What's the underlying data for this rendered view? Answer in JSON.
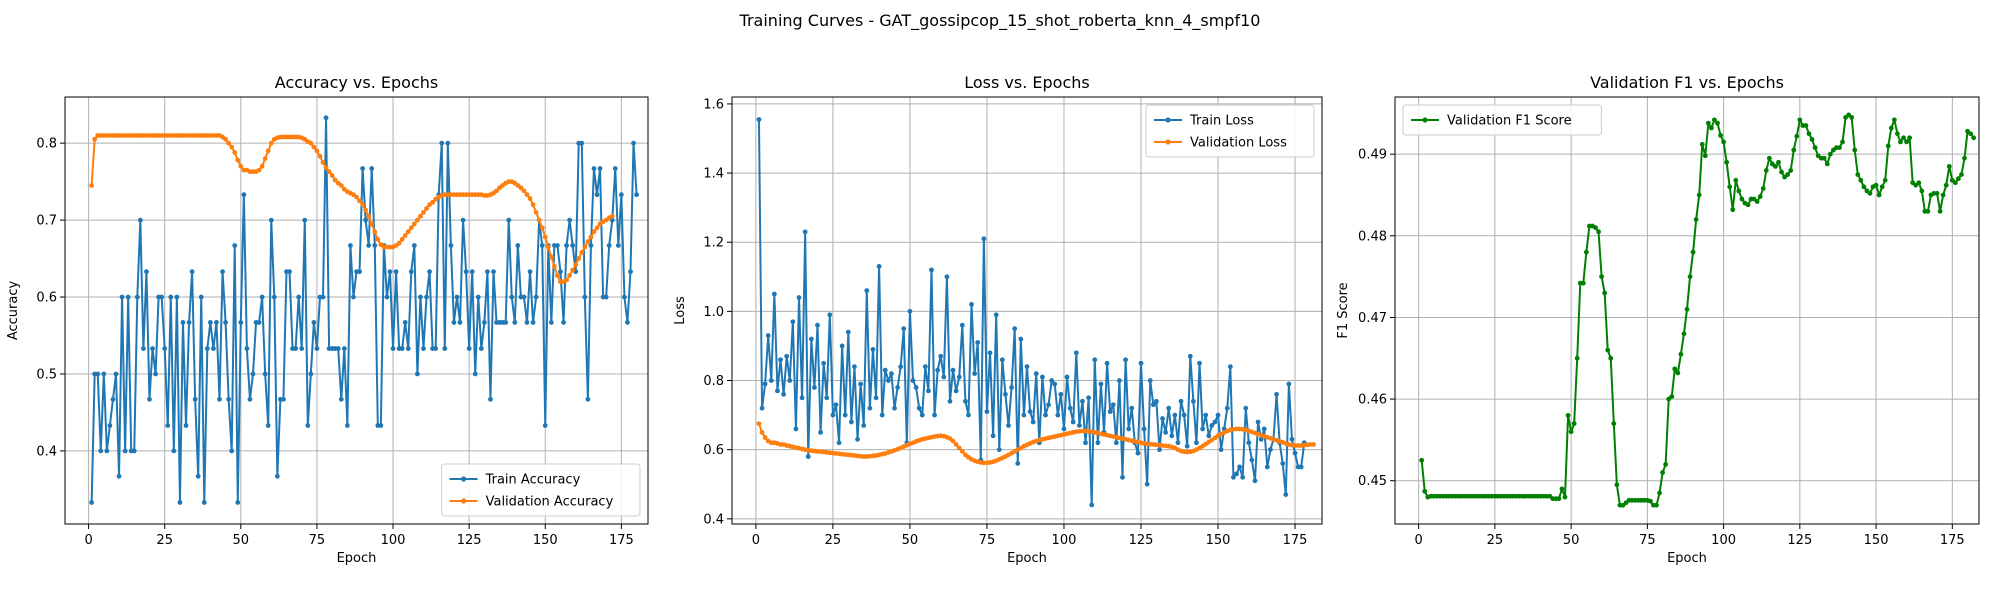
{
  "figure": {
    "suptitle": "Training Curves - GAT_gossipcop_15_shot_roberta_knn_4_smpf10"
  },
  "chart_data": [
    {
      "type": "line",
      "title": "Accuracy vs. Epochs",
      "xlabel": "Epoch",
      "ylabel": "Accuracy",
      "xlim": [
        -7.75,
        183.75
      ],
      "ylim": [
        0.305,
        0.86
      ],
      "xticks": [
        0,
        25,
        50,
        75,
        100,
        125,
        150,
        175
      ],
      "yticks": [
        0.4,
        0.5,
        0.6,
        0.7,
        0.8
      ],
      "ytick_decimals": 1,
      "grid": true,
      "legend": "lower-right",
      "series": [
        {
          "name": "Train Accuracy",
          "color": "#1f77b4",
          "values": [
            0.333,
            0.5,
            0.5,
            0.4,
            0.5,
            0.4,
            0.433,
            0.467,
            0.5,
            0.367,
            0.6,
            0.4,
            0.6,
            0.4,
            0.4,
            0.6,
            0.7,
            0.533,
            0.633,
            0.467,
            0.533,
            0.5,
            0.6,
            0.6,
            0.533,
            0.433,
            0.6,
            0.4,
            0.6,
            0.333,
            0.567,
            0.433,
            0.567,
            0.633,
            0.467,
            0.367,
            0.6,
            0.333,
            0.533,
            0.567,
            0.533,
            0.567,
            0.467,
            0.633,
            0.567,
            0.467,
            0.4,
            0.667,
            0.333,
            0.567,
            0.733,
            0.533,
            0.467,
            0.5,
            0.567,
            0.567,
            0.6,
            0.5,
            0.433,
            0.7,
            0.6,
            0.367,
            0.467,
            0.467,
            0.633,
            0.633,
            0.533,
            0.533,
            0.6,
            0.533,
            0.7,
            0.433,
            0.5,
            0.567,
            0.533,
            0.6,
            0.6,
            0.833,
            0.533,
            0.533,
            0.533,
            0.533,
            0.467,
            0.533,
            0.433,
            0.667,
            0.6,
            0.633,
            0.633,
            0.767,
            0.7,
            0.667,
            0.767,
            0.667,
            0.433,
            0.433,
            0.667,
            0.6,
            0.633,
            0.533,
            0.633,
            0.533,
            0.533,
            0.567,
            0.533,
            0.633,
            0.667,
            0.5,
            0.6,
            0.533,
            0.6,
            0.633,
            0.533,
            0.533,
            0.733,
            0.8,
            0.533,
            0.8,
            0.667,
            0.567,
            0.6,
            0.567,
            0.7,
            0.633,
            0.533,
            0.633,
            0.5,
            0.6,
            0.533,
            0.567,
            0.633,
            0.467,
            0.633,
            0.567,
            0.567,
            0.567,
            0.567,
            0.7,
            0.6,
            0.567,
            0.667,
            0.6,
            0.6,
            0.567,
            0.633,
            0.567,
            0.6,
            0.7,
            0.667,
            0.433,
            0.667,
            0.567,
            0.667,
            0.667,
            0.633,
            0.567,
            0.667,
            0.7,
            0.667,
            0.633,
            0.8,
            0.8,
            0.6,
            0.467,
            0.667,
            0.767,
            0.733,
            0.767,
            0.6,
            0.6,
            0.667,
            0.7,
            0.767,
            0.667,
            0.733,
            0.6,
            0.567,
            0.633,
            0.8,
            0.733
          ]
        },
        {
          "name": "Validation Accuracy",
          "color": "#ff7f0e",
          "values": [
            0.745,
            0.805,
            0.81,
            0.81,
            0.81,
            0.81,
            0.81,
            0.81,
            0.81,
            0.81,
            0.81,
            0.81,
            0.81,
            0.81,
            0.81,
            0.81,
            0.81,
            0.81,
            0.81,
            0.81,
            0.81,
            0.81,
            0.81,
            0.81,
            0.81,
            0.81,
            0.81,
            0.81,
            0.81,
            0.81,
            0.81,
            0.81,
            0.81,
            0.81,
            0.81,
            0.81,
            0.81,
            0.81,
            0.81,
            0.81,
            0.81,
            0.81,
            0.81,
            0.808,
            0.805,
            0.8,
            0.795,
            0.788,
            0.778,
            0.77,
            0.765,
            0.765,
            0.763,
            0.763,
            0.763,
            0.765,
            0.77,
            0.78,
            0.79,
            0.8,
            0.805,
            0.807,
            0.808,
            0.808,
            0.808,
            0.808,
            0.808,
            0.808,
            0.808,
            0.807,
            0.805,
            0.802,
            0.8,
            0.795,
            0.79,
            0.783,
            0.775,
            0.768,
            0.763,
            0.758,
            0.752,
            0.748,
            0.745,
            0.74,
            0.737,
            0.735,
            0.733,
            0.73,
            0.725,
            0.72,
            0.713,
            0.705,
            0.695,
            0.685,
            0.675,
            0.668,
            0.665,
            0.665,
            0.665,
            0.665,
            0.667,
            0.67,
            0.675,
            0.68,
            0.685,
            0.69,
            0.695,
            0.7,
            0.705,
            0.71,
            0.715,
            0.72,
            0.723,
            0.727,
            0.73,
            0.732,
            0.733,
            0.733,
            0.733,
            0.733,
            0.733,
            0.733,
            0.733,
            0.733,
            0.733,
            0.733,
            0.733,
            0.733,
            0.733,
            0.732,
            0.732,
            0.733,
            0.735,
            0.738,
            0.742,
            0.745,
            0.748,
            0.75,
            0.75,
            0.748,
            0.745,
            0.742,
            0.738,
            0.733,
            0.728,
            0.72,
            0.71,
            0.7,
            0.69,
            0.678,
            0.665,
            0.652,
            0.64,
            0.628,
            0.62,
            0.62,
            0.622,
            0.628,
            0.635,
            0.642,
            0.65,
            0.658,
            0.665,
            0.672,
            0.678,
            0.685,
            0.69,
            0.695,
            0.698,
            0.7,
            0.703,
            0.705
          ]
        }
      ]
    },
    {
      "type": "line",
      "title": "Loss vs. Epochs",
      "xlabel": "Epoch",
      "ylabel": "Loss",
      "xlim": [
        -7.75,
        183.75
      ],
      "ylim": [
        0.385,
        1.62
      ],
      "xticks": [
        0,
        25,
        50,
        75,
        100,
        125,
        150,
        175
      ],
      "yticks": [
        0.4,
        0.6,
        0.8,
        1.0,
        1.2,
        1.4,
        1.6
      ],
      "ytick_decimals": 1,
      "grid": true,
      "legend": "upper-right",
      "series": [
        {
          "name": "Train Loss",
          "color": "#1f77b4",
          "values": [
            1.555,
            0.72,
            0.79,
            0.93,
            0.8,
            1.05,
            0.77,
            0.86,
            0.76,
            0.87,
            0.8,
            0.97,
            0.66,
            1.04,
            0.75,
            1.23,
            0.58,
            0.92,
            0.78,
            0.96,
            0.65,
            0.85,
            0.75,
            0.99,
            0.7,
            0.73,
            0.62,
            0.9,
            0.7,
            0.94,
            0.68,
            0.84,
            0.63,
            0.79,
            0.67,
            1.06,
            0.72,
            0.89,
            0.75,
            1.13,
            0.7,
            0.83,
            0.8,
            0.82,
            0.72,
            0.78,
            0.84,
            0.95,
            0.62,
            1.0,
            0.8,
            0.78,
            0.72,
            0.7,
            0.84,
            0.77,
            1.12,
            0.7,
            0.83,
            0.87,
            0.81,
            1.1,
            0.74,
            0.83,
            0.77,
            0.81,
            0.96,
            0.74,
            0.7,
            1.02,
            0.82,
            0.91,
            0.57,
            1.21,
            0.71,
            0.88,
            0.64,
            0.99,
            0.6,
            0.86,
            0.76,
            0.67,
            0.78,
            0.95,
            0.56,
            0.92,
            0.7,
            0.84,
            0.71,
            0.68,
            0.82,
            0.62,
            0.81,
            0.7,
            0.73,
            0.8,
            0.79,
            0.7,
            0.76,
            0.66,
            0.81,
            0.72,
            0.68,
            0.88,
            0.67,
            0.74,
            0.62,
            0.75,
            0.44,
            0.86,
            0.62,
            0.79,
            0.65,
            0.85,
            0.71,
            0.73,
            0.62,
            0.8,
            0.52,
            0.86,
            0.66,
            0.72,
            0.62,
            0.59,
            0.85,
            0.66,
            0.5,
            0.8,
            0.73,
            0.74,
            0.6,
            0.69,
            0.65,
            0.72,
            0.64,
            0.7,
            0.62,
            0.74,
            0.7,
            0.61,
            0.87,
            0.74,
            0.62,
            0.85,
            0.66,
            0.7,
            0.64,
            0.67,
            0.68,
            0.7,
            0.6,
            0.66,
            0.72,
            0.84,
            0.52,
            0.53,
            0.55,
            0.52,
            0.72,
            0.62,
            0.57,
            0.51,
            0.68,
            0.63,
            0.66,
            0.55,
            0.6,
            0.63,
            0.76,
            0.62,
            0.56,
            0.47,
            0.79,
            0.63,
            0.59,
            0.55,
            0.55,
            0.62
          ]
        },
        {
          "name": "Validation Loss",
          "color": "#ff7f0e",
          "values": [
            0.675,
            0.65,
            0.635,
            0.625,
            0.62,
            0.62,
            0.618,
            0.615,
            0.615,
            0.612,
            0.61,
            0.608,
            0.606,
            0.604,
            0.602,
            0.6,
            0.598,
            0.597,
            0.596,
            0.595,
            0.594,
            0.593,
            0.592,
            0.591,
            0.59,
            0.589,
            0.588,
            0.587,
            0.586,
            0.585,
            0.584,
            0.583,
            0.582,
            0.581,
            0.58,
            0.58,
            0.581,
            0.582,
            0.583,
            0.585,
            0.587,
            0.589,
            0.592,
            0.595,
            0.598,
            0.601,
            0.605,
            0.609,
            0.613,
            0.617,
            0.62,
            0.624,
            0.627,
            0.63,
            0.632,
            0.634,
            0.636,
            0.638,
            0.639,
            0.64,
            0.639,
            0.636,
            0.632,
            0.625,
            0.615,
            0.605,
            0.595,
            0.585,
            0.578,
            0.572,
            0.568,
            0.565,
            0.563,
            0.562,
            0.562,
            0.563,
            0.565,
            0.568,
            0.572,
            0.576,
            0.58,
            0.585,
            0.59,
            0.595,
            0.6,
            0.605,
            0.61,
            0.614,
            0.618,
            0.622,
            0.625,
            0.628,
            0.63,
            0.632,
            0.634,
            0.636,
            0.638,
            0.64,
            0.642,
            0.644,
            0.646,
            0.648,
            0.65,
            0.652,
            0.653,
            0.654,
            0.654,
            0.653,
            0.652,
            0.65,
            0.648,
            0.646,
            0.644,
            0.642,
            0.64,
            0.638,
            0.636,
            0.634,
            0.632,
            0.63,
            0.628,
            0.626,
            0.624,
            0.622,
            0.62,
            0.618,
            0.617,
            0.616,
            0.615,
            0.614,
            0.613,
            0.612,
            0.611,
            0.61,
            0.608,
            0.605,
            0.6,
            0.596,
            0.594,
            0.593,
            0.594,
            0.596,
            0.6,
            0.605,
            0.61,
            0.616,
            0.622,
            0.628,
            0.634,
            0.64,
            0.645,
            0.65,
            0.654,
            0.657,
            0.659,
            0.66,
            0.66,
            0.659,
            0.657,
            0.654,
            0.651,
            0.648,
            0.645,
            0.642,
            0.639,
            0.636,
            0.633,
            0.63,
            0.627,
            0.624,
            0.621,
            0.618,
            0.615,
            0.613,
            0.612,
            0.612,
            0.612,
            0.613,
            0.614,
            0.615,
            0.615
          ]
        }
      ]
    },
    {
      "type": "line",
      "title": "Validation F1 vs. Epochs",
      "xlabel": "Epoch",
      "ylabel": "F1 Score",
      "xlim": [
        -7.75,
        183.75
      ],
      "ylim": [
        0.4447,
        0.497
      ],
      "xticks": [
        0,
        25,
        50,
        75,
        100,
        125,
        150,
        175
      ],
      "yticks": [
        0.45,
        0.46,
        0.47,
        0.48,
        0.49
      ],
      "ytick_decimals": 2,
      "grid": true,
      "legend": "upper-left",
      "series": [
        {
          "name": "Validation F1 Score",
          "color": "#008000",
          "values": [
            0.4525,
            0.4487,
            0.448,
            0.4481,
            0.4481,
            0.4481,
            0.4481,
            0.4481,
            0.4481,
            0.4481,
            0.4481,
            0.4481,
            0.4481,
            0.4481,
            0.4481,
            0.4481,
            0.4481,
            0.4481,
            0.4481,
            0.4481,
            0.4481,
            0.4481,
            0.4481,
            0.4481,
            0.4481,
            0.4481,
            0.4481,
            0.4481,
            0.4481,
            0.4481,
            0.4481,
            0.4481,
            0.4481,
            0.4481,
            0.4481,
            0.4481,
            0.4481,
            0.4481,
            0.4481,
            0.4481,
            0.4481,
            0.4481,
            0.4481,
            0.4478,
            0.4478,
            0.4478,
            0.449,
            0.448,
            0.458,
            0.456,
            0.457,
            0.465,
            0.4742,
            0.4742,
            0.478,
            0.4812,
            0.4812,
            0.481,
            0.4805,
            0.475,
            0.473,
            0.466,
            0.465,
            0.457,
            0.4495,
            0.447,
            0.447,
            0.4473,
            0.4476,
            0.4476,
            0.4476,
            0.4476,
            0.4476,
            0.4476,
            0.4476,
            0.4475,
            0.447,
            0.447,
            0.4485,
            0.451,
            0.452,
            0.46,
            0.4603,
            0.4637,
            0.4632,
            0.4655,
            0.468,
            0.471,
            0.475,
            0.478,
            0.482,
            0.485,
            0.4912,
            0.4898,
            0.4938,
            0.4932,
            0.4942,
            0.4938,
            0.4923,
            0.4915,
            0.489,
            0.486,
            0.4832,
            0.4868,
            0.4855,
            0.4845,
            0.484,
            0.4838,
            0.4845,
            0.4845,
            0.4842,
            0.4848,
            0.4858,
            0.488,
            0.4895,
            0.4888,
            0.4885,
            0.489,
            0.4878,
            0.4872,
            0.4875,
            0.488,
            0.4905,
            0.4922,
            0.4942,
            0.4935,
            0.4935,
            0.4925,
            0.4918,
            0.4908,
            0.4898,
            0.4895,
            0.4895,
            0.4888,
            0.49,
            0.4905,
            0.4908,
            0.4908,
            0.4915,
            0.4945,
            0.4948,
            0.4945,
            0.4905,
            0.4875,
            0.4868,
            0.486,
            0.4855,
            0.4852,
            0.486,
            0.4862,
            0.485,
            0.486,
            0.4868,
            0.491,
            0.4932,
            0.4942,
            0.4925,
            0.4915,
            0.492,
            0.4915,
            0.492,
            0.4865,
            0.4862,
            0.4865,
            0.4855,
            0.483,
            0.483,
            0.485,
            0.4852,
            0.4852,
            0.483,
            0.485,
            0.4862,
            0.4885,
            0.4868,
            0.4865,
            0.487,
            0.4875,
            0.4895,
            0.4928,
            0.4925,
            0.492
          ]
        }
      ]
    }
  ]
}
